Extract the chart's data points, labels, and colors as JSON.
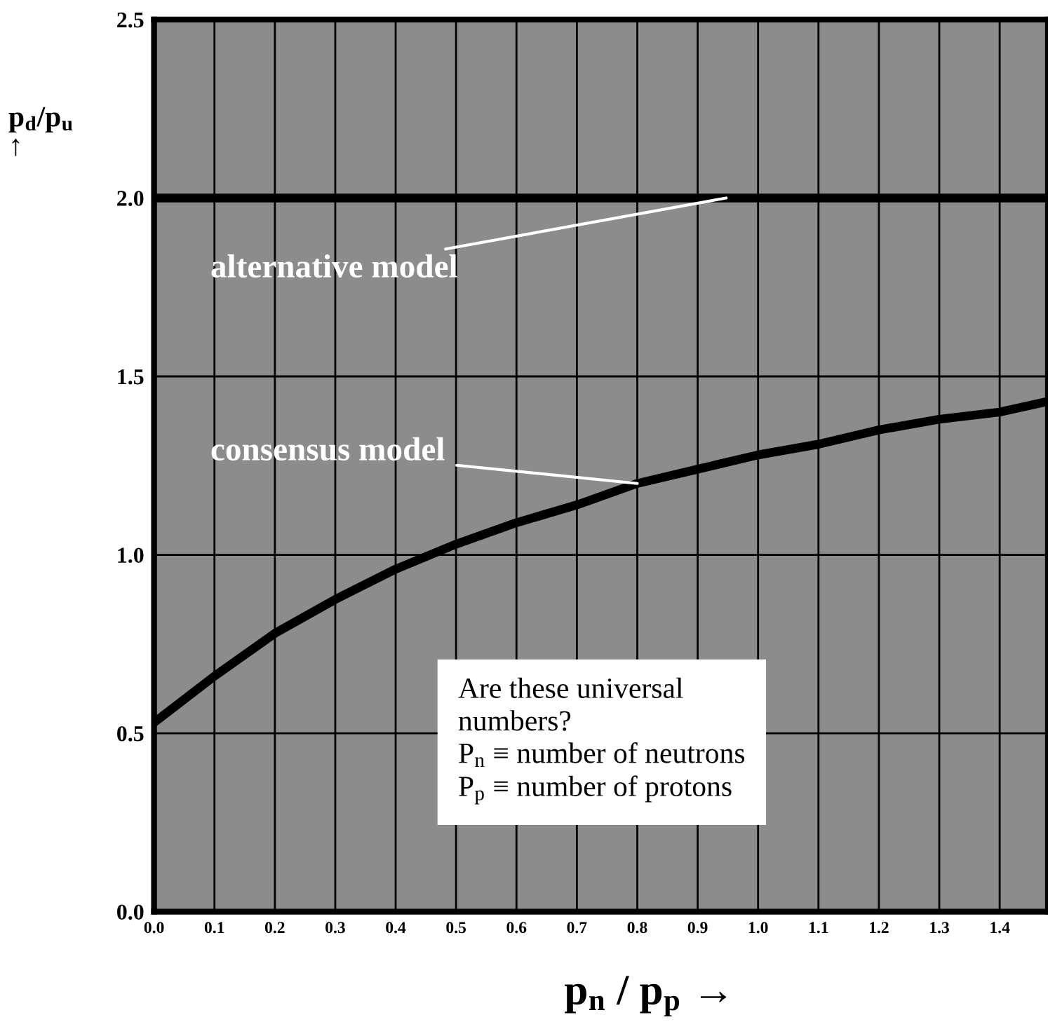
{
  "chart_data": {
    "type": "line",
    "xlabel": "p$_{n}$ / p$_{p}$ →",
    "ylabel": "p$_{d}$/p$_{u}$\n↑",
    "xlim": [
      0,
      1.48
    ],
    "ylim": [
      0,
      2.5
    ],
    "xticks": [
      {
        "value": 0,
        "label": "0.0"
      },
      0.1,
      0.2,
      0.3,
      0.4,
      0.5,
      0.6,
      0.7,
      0.8,
      0.9,
      {
        "value": 1,
        "label": "1.0"
      },
      1.1,
      1.2,
      1.3,
      1.4
    ],
    "yticks": [
      {
        "value": 0,
        "label": "0.0"
      },
      0.5,
      {
        "value": 1,
        "label": "1.0"
      },
      1.5,
      {
        "value": 2,
        "label": "2.0"
      },
      2.5
    ],
    "grid": true,
    "legend": false,
    "marker": "none",
    "line_style": "solid",
    "ref_lines": [
      {
        "axis": "y",
        "value": 2.0,
        "label": "alternative model",
        "color": "#000000"
      }
    ],
    "series": [
      {
        "name": "consensus model",
        "color": "#000000",
        "x": [
          0,
          0.1,
          0.2,
          0.3,
          0.4,
          0.5,
          0.6,
          0.7,
          0.8,
          0.9,
          1.0,
          1.1,
          1.2,
          1.3,
          1.4,
          1.48
        ],
        "values": [
          0.53,
          0.66,
          0.78,
          0.875,
          0.96,
          1.03,
          1.09,
          1.14,
          1.2,
          1.24,
          1.28,
          1.31,
          1.35,
          1.38,
          1.4,
          1.43
        ]
      }
    ],
    "annotations": [
      "Are these universal\nnumbers?\nP$_{n}$ ≡ number of neutrons\nP$_{p}$ ≡ number of protons"
    ]
  }
}
